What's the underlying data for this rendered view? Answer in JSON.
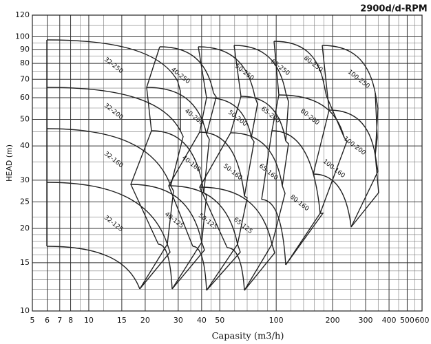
{
  "chart_data": {
    "type": "pump-chart",
    "title": "2900d/d-RPM",
    "xlabel": "Capasity (m3/h)",
    "ylabel": "HEAD (m)",
    "xscale": "log",
    "yscale": "log",
    "grid": true,
    "xlim": [
      5,
      600
    ],
    "ylim": [
      10,
      120
    ],
    "xticks": [
      5,
      6,
      7,
      8,
      10,
      15,
      20,
      30,
      40,
      50,
      100,
      200,
      300,
      400,
      500,
      600
    ],
    "yticks": [
      10,
      15,
      20,
      25,
      30,
      40,
      50,
      60,
      70,
      80,
      90,
      100,
      120
    ],
    "xminor": [
      9,
      12,
      25,
      35,
      45,
      60,
      70,
      80,
      90,
      120,
      140,
      160,
      180,
      250,
      350,
      450,
      550
    ],
    "yminor": [
      11,
      12,
      13,
      14,
      16,
      17,
      18,
      19,
      22,
      35,
      45,
      55,
      65,
      75,
      85,
      95,
      110
    ],
    "regions": [
      "32-250",
      "40-250",
      "50-250",
      "65-250",
      "80-250",
      "100-250",
      "32-200",
      "40-200",
      "50-200",
      "65-200",
      "80-200",
      "100-200",
      "32-160",
      "40-160",
      "50-160",
      "65-160",
      "80-160",
      "100-160",
      "32-125",
      "40-125",
      "50-125",
      "65-125"
    ]
  }
}
